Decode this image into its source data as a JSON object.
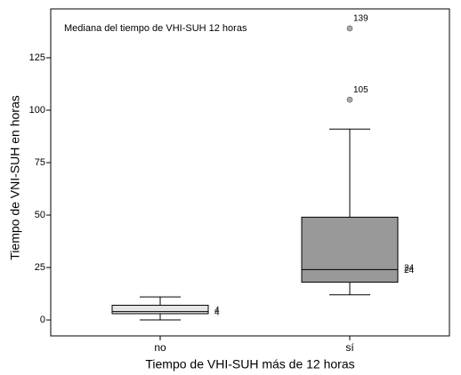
{
  "chart_data": {
    "type": "boxplot",
    "annotation": "Mediana del tiempo de VHI-SUH 12 horas",
    "xlabel": "Tiempo de VHI-SUH más de 12 horas",
    "ylabel": "Tiempo de VNI-SUH en horas",
    "categories": [
      "no",
      "sí"
    ],
    "boxes": [
      {
        "whislo": 0,
        "q1": 3,
        "med": 4,
        "q3": 7,
        "whishi": 11,
        "color": "#e6e6e6",
        "fliers": [],
        "flier_labels": [],
        "case_labels": [
          "4",
          "4"
        ]
      },
      {
        "whislo": 12,
        "q1": 18,
        "med": 24,
        "q3": 49,
        "whishi": 91,
        "color": "#999999",
        "fliers": [
          105,
          139
        ],
        "flier_labels": [
          "105",
          "139"
        ],
        "case_labels": [
          "24",
          "24"
        ]
      }
    ],
    "flier_color": "#aaaaaa",
    "ylim": [
      -7.6,
      148.3
    ],
    "yticks": [
      0,
      25,
      50,
      75,
      100,
      125
    ]
  }
}
